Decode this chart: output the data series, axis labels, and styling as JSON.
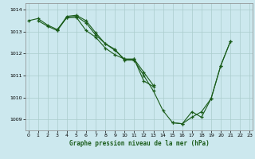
{
  "title": "Graphe pression niveau de la mer (hPa)",
  "bg_color": "#cce8ee",
  "line_color": "#1a5c1a",
  "grid_color": "#aacccc",
  "ylim": [
    1008.5,
    1014.3
  ],
  "xlim": [
    -0.3,
    23.3
  ],
  "yticks": [
    1009,
    1010,
    1011,
    1012,
    1013,
    1014
  ],
  "xticks": [
    0,
    1,
    2,
    3,
    4,
    5,
    6,
    7,
    8,
    9,
    10,
    11,
    12,
    13,
    14,
    15,
    16,
    17,
    18,
    19,
    20,
    21,
    22,
    23
  ],
  "ylabel_fontsize": 5,
  "xlabel_fontsize": 5,
  "series": [
    {
      "x": [
        0,
        1,
        2,
        3,
        4,
        5,
        6,
        7,
        8,
        9,
        10,
        11,
        12,
        13,
        14,
        15,
        16,
        17,
        18,
        19,
        20,
        21
      ],
      "y": [
        1013.5,
        1013.6,
        1013.3,
        1013.1,
        1013.65,
        1013.7,
        1013.4,
        1012.85,
        1012.45,
        1012.2,
        1011.7,
        1011.7,
        1011.0,
        1010.3,
        1009.4,
        1008.85,
        1008.8,
        1009.1,
        1009.35,
        1009.95,
        1011.45,
        1012.55
      ]
    },
    {
      "x": [
        1,
        2,
        3,
        4,
        5,
        6,
        7,
        8,
        9,
        10,
        11,
        12,
        13
      ],
      "y": [
        1013.5,
        1013.25,
        1013.05,
        1013.7,
        1013.75,
        1013.5,
        1012.95,
        1012.45,
        1012.15,
        1011.75,
        1011.75,
        1010.75,
        1010.5
      ]
    },
    {
      "x": [
        3,
        4,
        5,
        6,
        7,
        8,
        9,
        10,
        11,
        12,
        13
      ],
      "y": [
        1013.05,
        1013.65,
        1013.65,
        1013.05,
        1012.75,
        1012.25,
        1011.95,
        1011.75,
        1011.75,
        1011.15,
        1010.55
      ]
    },
    {
      "x": [
        15,
        16,
        17,
        18,
        19,
        20,
        21
      ],
      "y": [
        1008.85,
        1008.8,
        1009.35,
        1009.1,
        1009.95,
        1011.45,
        1012.55
      ]
    }
  ]
}
